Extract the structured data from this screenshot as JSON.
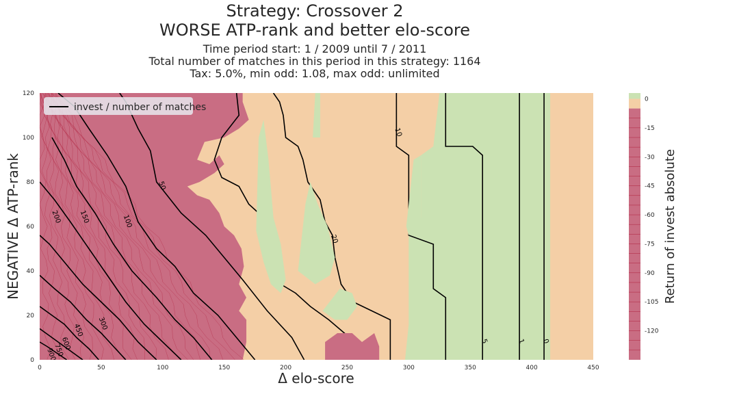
{
  "title": {
    "line1": "Strategy: Crossover 2",
    "line2": "WORSE ATP-rank and better elo-score"
  },
  "subtitle": {
    "line1": "Time period start: 1 / 2009 until 7 / 2011",
    "line2": "Total number of matches in this period in this strategy: 1164",
    "line3": "Tax: 5.0%, min odd: 1.08, max odd: unlimited"
  },
  "colors": {
    "negative": "#c96d83",
    "neutral": "#f4cfa6",
    "positive": "#cbe2b3",
    "contour_line": "#000000",
    "fine_contour": "#b0223e"
  },
  "chart_data": {
    "type": "heatmap",
    "xlabel": "Δ elo-score",
    "ylabel": "NEGATIVE Δ ATP-rank",
    "xlim": [
      0,
      450
    ],
    "ylim": [
      0,
      120
    ],
    "x_ticks": [
      0,
      50,
      100,
      150,
      200,
      250,
      300,
      350,
      400,
      450
    ],
    "y_ticks": [
      0,
      20,
      40,
      60,
      80,
      100,
      120
    ],
    "colorbar": {
      "label": "Return of invest absolute",
      "ticks": [
        0,
        -15,
        -30,
        -45,
        -60,
        -75,
        -90,
        -105,
        -120
      ],
      "range": [
        -135,
        3
      ]
    },
    "legend": {
      "entries": [
        "invest / number of matches"
      ],
      "placement": "upper-left"
    },
    "contour_labels": [
      "900",
      "750",
      "600",
      "450",
      "300",
      "200",
      "150",
      "100",
      "50",
      "30",
      "20",
      "10",
      "5",
      "1",
      "0"
    ],
    "regions": [
      {
        "name": "negative",
        "description_level": "below -5",
        "approx_boundary_x_at_y": [
          [
            0,
            165
          ],
          [
            20,
            170
          ],
          [
            60,
            160
          ],
          [
            80,
            130
          ],
          [
            120,
            165
          ]
        ]
      },
      {
        "name": "positive",
        "level": "0 to 3",
        "x_range_bottom": [
          290,
          410
        ]
      },
      {
        "name": "neutral",
        "level": "-5 to 0"
      }
    ],
    "contours": [
      {
        "label": "0",
        "points": [
          [
            410,
            0
          ],
          [
            410,
            120
          ]
        ]
      },
      {
        "label": "1",
        "points": [
          [
            390,
            0
          ],
          [
            390,
            120
          ]
        ]
      },
      {
        "label": "5",
        "points": [
          [
            360,
            0
          ],
          [
            360,
            92
          ],
          [
            352,
            96
          ],
          [
            330,
            96
          ],
          [
            330,
            120
          ]
        ]
      },
      {
        "label": "10",
        "points": [
          [
            330,
            0
          ],
          [
            330,
            28
          ],
          [
            320,
            32
          ],
          [
            320,
            52
          ],
          [
            300,
            56
          ],
          [
            300,
            92
          ],
          [
            290,
            96
          ],
          [
            290,
            120
          ]
        ]
      },
      {
        "label": "20",
        "points": [
          [
            285,
            0
          ],
          [
            285,
            18
          ],
          [
            270,
            22
          ],
          [
            255,
            26
          ],
          [
            245,
            34
          ],
          [
            240,
            46
          ],
          [
            238,
            56
          ],
          [
            232,
            62
          ],
          [
            228,
            72
          ],
          [
            218,
            80
          ],
          [
            214,
            90
          ],
          [
            210,
            96
          ],
          [
            200,
            100
          ],
          [
            198,
            110
          ],
          [
            195,
            116
          ],
          [
            190,
            120
          ]
        ]
      },
      {
        "label": "30",
        "points": [
          [
            258,
            0
          ],
          [
            252,
            10
          ],
          [
            235,
            18
          ],
          [
            220,
            24
          ],
          [
            208,
            30
          ],
          [
            190,
            36
          ],
          [
            185,
            46
          ],
          [
            182,
            54
          ],
          [
            180,
            60
          ],
          [
            178,
            66
          ],
          [
            170,
            70
          ],
          [
            162,
            78
          ],
          [
            148,
            82
          ],
          [
            142,
            90
          ],
          [
            148,
            100
          ],
          [
            162,
            110
          ],
          [
            160,
            120
          ]
        ]
      },
      {
        "label": "50",
        "points": [
          [
            215,
            0
          ],
          [
            205,
            10
          ],
          [
            185,
            22
          ],
          [
            165,
            36
          ],
          [
            150,
            46
          ],
          [
            135,
            56
          ],
          [
            115,
            66
          ],
          [
            95,
            80
          ],
          [
            90,
            94
          ],
          [
            80,
            104
          ],
          [
            70,
            116
          ],
          [
            65,
            120
          ]
        ]
      },
      {
        "label": "100",
        "points": [
          [
            175,
            0
          ],
          [
            160,
            10
          ],
          [
            145,
            20
          ],
          [
            125,
            30
          ],
          [
            110,
            42
          ],
          [
            95,
            50
          ],
          [
            80,
            62
          ],
          [
            70,
            78
          ],
          [
            55,
            92
          ],
          [
            40,
            104
          ],
          [
            28,
            114
          ],
          [
            15,
            120
          ]
        ]
      },
      {
        "label": "150",
        "points": [
          [
            140,
            0
          ],
          [
            125,
            10
          ],
          [
            110,
            18
          ],
          [
            95,
            28
          ],
          [
            75,
            40
          ],
          [
            60,
            52
          ],
          [
            45,
            66
          ],
          [
            30,
            78
          ],
          [
            20,
            90
          ],
          [
            10,
            100
          ]
        ]
      },
      {
        "label": "200",
        "points": [
          [
            115,
            0
          ],
          [
            100,
            8
          ],
          [
            85,
            16
          ],
          [
            70,
            26
          ],
          [
            55,
            38
          ],
          [
            40,
            50
          ],
          [
            25,
            62
          ],
          [
            12,
            72
          ],
          [
            0,
            80
          ]
        ]
      },
      {
        "label": "300",
        "points": [
          [
            95,
            0
          ],
          [
            80,
            8
          ],
          [
            65,
            18
          ],
          [
            50,
            26
          ],
          [
            35,
            34
          ],
          [
            20,
            44
          ],
          [
            8,
            52
          ],
          [
            0,
            56
          ]
        ]
      },
      {
        "label": "450",
        "points": [
          [
            70,
            0
          ],
          [
            60,
            6
          ],
          [
            50,
            12
          ],
          [
            38,
            18
          ],
          [
            25,
            26
          ],
          [
            12,
            32
          ],
          [
            0,
            38
          ]
        ]
      },
      {
        "label": "600",
        "points": [
          [
            48,
            0
          ],
          [
            40,
            5
          ],
          [
            30,
            10
          ],
          [
            20,
            16
          ],
          [
            10,
            20
          ],
          [
            0,
            24
          ]
        ]
      },
      {
        "label": "750",
        "points": [
          [
            35,
            0
          ],
          [
            25,
            4
          ],
          [
            15,
            8
          ],
          [
            5,
            12
          ],
          [
            0,
            14
          ]
        ]
      },
      {
        "label": "900",
        "points": [
          [
            22,
            0
          ],
          [
            14,
            3
          ],
          [
            6,
            6
          ],
          [
            0,
            8
          ]
        ]
      }
    ]
  }
}
